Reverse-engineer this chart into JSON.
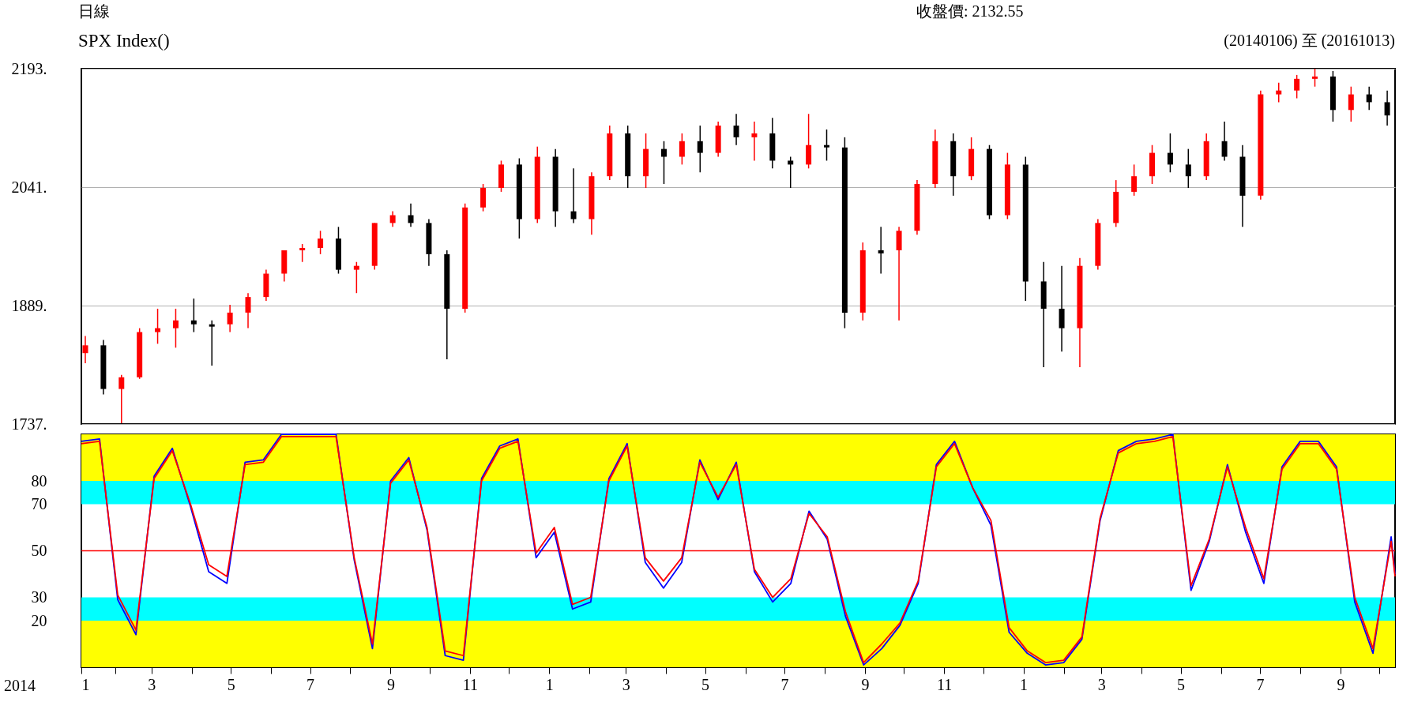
{
  "chart_data": [
    {
      "type": "candlestick",
      "title": "SPX Index()",
      "annotations": [
        "日線",
        "收盤價: 2132.55",
        "(20140106) 至 (20161013)"
      ],
      "x": [
        "2014-01-06",
        "2014-01-20",
        "2014-02-03",
        "2014-02-17",
        "2014-03-03",
        "2014-03-17",
        "2014-03-31",
        "2014-04-14",
        "2014-04-28",
        "2014-05-12",
        "2014-05-26",
        "2014-06-09",
        "2014-06-23",
        "2014-07-07",
        "2014-07-21",
        "2014-08-04",
        "2014-08-18",
        "2014-09-01",
        "2014-09-15",
        "2014-09-29",
        "2014-10-13",
        "2014-10-27",
        "2014-11-10",
        "2014-11-24",
        "2014-12-08",
        "2014-12-22",
        "2015-01-05",
        "2015-01-19",
        "2015-02-02",
        "2015-02-16",
        "2015-03-02",
        "2015-03-16",
        "2015-03-30",
        "2015-04-13",
        "2015-04-27",
        "2015-05-11",
        "2015-05-25",
        "2015-06-08",
        "2015-06-22",
        "2015-07-06",
        "2015-07-20",
        "2015-08-03",
        "2015-08-17",
        "2015-08-31",
        "2015-09-14",
        "2015-09-28",
        "2015-10-12",
        "2015-10-26",
        "2015-11-09",
        "2015-11-23",
        "2015-12-07",
        "2015-12-21",
        "2016-01-04",
        "2016-01-18",
        "2016-02-01",
        "2016-02-15",
        "2016-02-29",
        "2016-03-14",
        "2016-03-28",
        "2016-04-11",
        "2016-04-25",
        "2016-05-09",
        "2016-05-23",
        "2016-06-06",
        "2016-06-20",
        "2016-07-04",
        "2016-07-18",
        "2016-08-01",
        "2016-08-15",
        "2016-08-29",
        "2016-09-12",
        "2016-09-26",
        "2016-10-10"
      ],
      "ohlc": [
        [
          1828,
          1850,
          1815,
          1838
        ],
        [
          1838,
          1845,
          1775,
          1782
        ],
        [
          1782,
          1800,
          1738,
          1797
        ],
        [
          1797,
          1860,
          1795,
          1855
        ],
        [
          1855,
          1885,
          1840,
          1860
        ],
        [
          1860,
          1885,
          1835,
          1870
        ],
        [
          1870,
          1898,
          1855,
          1865
        ],
        [
          1865,
          1870,
          1812,
          1862
        ],
        [
          1865,
          1890,
          1855,
          1880
        ],
        [
          1880,
          1905,
          1860,
          1900
        ],
        [
          1900,
          1935,
          1895,
          1930
        ],
        [
          1930,
          1960,
          1920,
          1960
        ],
        [
          1960,
          1968,
          1945,
          1963
        ],
        [
          1963,
          1985,
          1955,
          1975
        ],
        [
          1975,
          1990,
          1930,
          1935
        ],
        [
          1935,
          1945,
          1905,
          1940
        ],
        [
          1940,
          1995,
          1935,
          1995
        ],
        [
          1995,
          2010,
          1990,
          2005
        ],
        [
          2005,
          2020,
          1990,
          1995
        ],
        [
          1995,
          2000,
          1940,
          1955
        ],
        [
          1955,
          1960,
          1820,
          1885
        ],
        [
          1885,
          2020,
          1880,
          2015
        ],
        [
          2015,
          2045,
          2010,
          2040
        ],
        [
          2040,
          2075,
          2035,
          2070
        ],
        [
          2070,
          2078,
          1975,
          2000
        ],
        [
          2000,
          2093,
          1995,
          2080
        ],
        [
          2080,
          2090,
          1990,
          2010
        ],
        [
          2010,
          2065,
          1995,
          2000
        ],
        [
          2000,
          2060,
          1980,
          2055
        ],
        [
          2055,
          2120,
          2050,
          2110
        ],
        [
          2110,
          2120,
          2040,
          2055
        ],
        [
          2055,
          2110,
          2040,
          2090
        ],
        [
          2090,
          2100,
          2045,
          2080
        ],
        [
          2080,
          2110,
          2070,
          2100
        ],
        [
          2100,
          2120,
          2060,
          2085
        ],
        [
          2085,
          2125,
          2080,
          2120
        ],
        [
          2120,
          2135,
          2095,
          2105
        ],
        [
          2105,
          2125,
          2075,
          2110
        ],
        [
          2110,
          2130,
          2065,
          2075
        ],
        [
          2075,
          2080,
          2040,
          2070
        ],
        [
          2070,
          2135,
          2065,
          2095
        ],
        [
          2095,
          2115,
          2075,
          2092
        ],
        [
          2092,
          2105,
          1860,
          1880
        ],
        [
          1880,
          1970,
          1870,
          1960
        ],
        [
          1960,
          1990,
          1930,
          1956
        ],
        [
          1960,
          1990,
          1870,
          1985
        ],
        [
          1985,
          2050,
          1980,
          2045
        ],
        [
          2045,
          2115,
          2040,
          2100
        ],
        [
          2100,
          2110,
          2030,
          2055
        ],
        [
          2055,
          2105,
          2050,
          2090
        ],
        [
          2090,
          2095,
          2000,
          2005
        ],
        [
          2005,
          2085,
          2000,
          2070
        ],
        [
          2070,
          2080,
          1895,
          1920
        ],
        [
          1920,
          1945,
          1810,
          1885
        ],
        [
          1885,
          1940,
          1830,
          1860
        ],
        [
          1860,
          1950,
          1810,
          1940
        ],
        [
          1940,
          2000,
          1935,
          1995
        ],
        [
          1995,
          2050,
          1990,
          2035
        ],
        [
          2035,
          2070,
          2030,
          2055
        ],
        [
          2055,
          2095,
          2045,
          2085
        ],
        [
          2085,
          2110,
          2060,
          2070
        ],
        [
          2070,
          2090,
          2040,
          2055
        ],
        [
          2055,
          2110,
          2050,
          2100
        ],
        [
          2100,
          2125,
          2075,
          2080
        ],
        [
          2080,
          2095,
          1990,
          2030
        ],
        [
          2030,
          2165,
          2025,
          2160
        ],
        [
          2160,
          2175,
          2150,
          2165
        ],
        [
          2165,
          2185,
          2155,
          2180
        ],
        [
          2180,
          2193,
          2170,
          2183
        ],
        [
          2183,
          2190,
          2125,
          2140
        ],
        [
          2140,
          2170,
          2125,
          2160
        ],
        [
          2160,
          2170,
          2140,
          2150
        ],
        [
          2150,
          2165,
          2120,
          2133
        ]
      ],
      "colors": [
        "#ff0000",
        "#000000",
        "#ff0000",
        "#ff0000",
        "#ff0000",
        "#ff0000",
        "#000000",
        "#000000",
        "#ff0000",
        "#ff0000",
        "#ff0000",
        "#ff0000",
        "#ff0000",
        "#ff0000",
        "#000000",
        "#ff0000",
        "#ff0000",
        "#ff0000",
        "#000000",
        "#000000",
        "#000000",
        "#ff0000",
        "#ff0000",
        "#ff0000",
        "#000000",
        "#ff0000",
        "#000000",
        "#000000",
        "#ff0000",
        "#ff0000",
        "#000000",
        "#ff0000",
        "#000000",
        "#ff0000",
        "#000000",
        "#ff0000",
        "#000000",
        "#ff0000",
        "#000000",
        "#000000",
        "#ff0000",
        "#000000",
        "#000000",
        "#ff0000",
        "#000000",
        "#ff0000",
        "#ff0000",
        "#ff0000",
        "#000000",
        "#ff0000",
        "#000000",
        "#ff0000",
        "#000000",
        "#000000",
        "#000000",
        "#ff0000",
        "#ff0000",
        "#ff0000",
        "#ff0000",
        "#ff0000",
        "#000000",
        "#000000",
        "#ff0000",
        "#000000",
        "#000000",
        "#ff0000",
        "#ff0000",
        "#ff0000",
        "#ff0000",
        "#000000",
        "#ff0000",
        "#000000",
        "#000000"
      ],
      "xlim": [
        "2014-01-06",
        "2016-10-13"
      ],
      "ylim": [
        1737,
        2193
      ],
      "yticks": [
        {
          "value": 1737,
          "label": "1737."
        },
        {
          "value": 1889,
          "label": "1889."
        },
        {
          "value": 2041,
          "label": "2041."
        },
        {
          "value": 2193,
          "label": "2193."
        }
      ],
      "grid": "y",
      "tick_labels": "y"
    },
    {
      "type": "line",
      "annotations": [
        "2014"
      ],
      "x": [
        "2014-01-06",
        "2014-01-20",
        "2014-02-03",
        "2014-02-17",
        "2014-03-03",
        "2014-03-17",
        "2014-03-31",
        "2014-04-14",
        "2014-04-28",
        "2014-05-12",
        "2014-05-26",
        "2014-06-09",
        "2014-06-23",
        "2014-07-07",
        "2014-07-21",
        "2014-08-04",
        "2014-08-18",
        "2014-09-01",
        "2014-09-15",
        "2014-09-29",
        "2014-10-13",
        "2014-10-27",
        "2014-11-10",
        "2014-11-24",
        "2014-12-08",
        "2014-12-22",
        "2015-01-05",
        "2015-01-19",
        "2015-02-02",
        "2015-02-16",
        "2015-03-02",
        "2015-03-16",
        "2015-03-30",
        "2015-04-13",
        "2015-04-27",
        "2015-05-11",
        "2015-05-25",
        "2015-06-08",
        "2015-06-22",
        "2015-07-06",
        "2015-07-20",
        "2015-08-03",
        "2015-08-17",
        "2015-08-31",
        "2015-09-14",
        "2015-09-28",
        "2015-10-12",
        "2015-10-26",
        "2015-11-09",
        "2015-11-23",
        "2015-12-07",
        "2015-12-21",
        "2016-01-04",
        "2016-01-18",
        "2016-02-01",
        "2016-02-15",
        "2016-02-29",
        "2016-03-14",
        "2016-03-28",
        "2016-04-11",
        "2016-04-25",
        "2016-05-09",
        "2016-05-23",
        "2016-06-06",
        "2016-06-20",
        "2016-07-04",
        "2016-07-18",
        "2016-08-01",
        "2016-08-15",
        "2016-08-29",
        "2016-09-12",
        "2016-09-26",
        "2016-10-10",
        "2016-10-13"
      ],
      "series": [
        {
          "color": "#0000ff",
          "values": [
            97,
            98,
            29,
            14,
            82,
            94,
            69,
            41,
            36,
            88,
            89,
            100,
            100,
            100,
            100,
            46,
            8,
            80,
            90,
            59,
            5,
            3,
            81,
            95,
            98,
            47,
            58,
            25,
            28,
            81,
            96,
            45,
            34,
            45,
            89,
            72,
            88,
            41,
            28,
            36,
            67,
            55,
            22,
            1,
            8,
            18,
            36,
            87,
            97,
            77,
            61,
            15,
            6,
            1,
            2,
            12,
            63,
            93,
            97,
            98,
            100,
            33,
            54,
            87,
            58,
            36,
            86,
            97,
            97,
            86,
            28,
            6,
            56,
            40
          ]
        },
        {
          "color": "#ff0000",
          "values": [
            96,
            97,
            31,
            16,
            81,
            93,
            70,
            44,
            39,
            87,
            88,
            99,
            99,
            99,
            99,
            47,
            10,
            79,
            89,
            60,
            7,
            5,
            80,
            94,
            97,
            49,
            60,
            27,
            30,
            80,
            95,
            47,
            37,
            47,
            88,
            73,
            87,
            42,
            30,
            38,
            66,
            56,
            24,
            2,
            10,
            19,
            37,
            86,
            96,
            77,
            63,
            17,
            7,
            2,
            3,
            13,
            64,
            92,
            96,
            97,
            99,
            35,
            55,
            86,
            60,
            38,
            85,
            96,
            96,
            85,
            30,
            8,
            54,
            39
          ]
        }
      ],
      "xlim": [
        "2014-01-06",
        "2016-10-13"
      ],
      "xticks": [
        {
          "value": "2014-01-06",
          "label": "1"
        },
        {
          "value": "2014-02-01",
          "label": null
        },
        {
          "value": "2014-03-01",
          "label": "3"
        },
        {
          "value": "2014-04-01",
          "label": null
        },
        {
          "value": "2014-05-01",
          "label": "5"
        },
        {
          "value": "2014-06-01",
          "label": null
        },
        {
          "value": "2014-07-01",
          "label": "7"
        },
        {
          "value": "2014-08-01",
          "label": null
        },
        {
          "value": "2014-09-01",
          "label": "9"
        },
        {
          "value": "2014-10-01",
          "label": null
        },
        {
          "value": "2014-11-01",
          "label": "11"
        },
        {
          "value": "2014-12-01",
          "label": null
        },
        {
          "value": "2015-01-01",
          "label": "1"
        },
        {
          "value": "2015-02-01",
          "label": null
        },
        {
          "value": "2015-03-01",
          "label": "3"
        },
        {
          "value": "2015-04-01",
          "label": null
        },
        {
          "value": "2015-05-01",
          "label": "5"
        },
        {
          "value": "2015-06-01",
          "label": null
        },
        {
          "value": "2015-07-01",
          "label": "7"
        },
        {
          "value": "2015-08-01",
          "label": null
        },
        {
          "value": "2015-09-01",
          "label": "9"
        },
        {
          "value": "2015-10-01",
          "label": null
        },
        {
          "value": "2015-11-01",
          "label": "11"
        },
        {
          "value": "2015-12-01",
          "label": null
        },
        {
          "value": "2016-01-01",
          "label": "1"
        },
        {
          "value": "2016-02-01",
          "label": null
        },
        {
          "value": "2016-03-01",
          "label": "3"
        },
        {
          "value": "2016-04-01",
          "label": null
        },
        {
          "value": "2016-05-01",
          "label": "5"
        },
        {
          "value": "2016-06-01",
          "label": null
        },
        {
          "value": "2016-07-01",
          "label": "7"
        },
        {
          "value": "2016-08-01",
          "label": null
        },
        {
          "value": "2016-09-01",
          "label": "9"
        },
        {
          "value": "2016-10-01",
          "label": null
        }
      ],
      "ylim": [
        0,
        100
      ],
      "yticks": [
        20,
        30,
        50,
        70,
        80
      ],
      "bands": [
        {
          "axis": "y",
          "from": 0,
          "to": 20,
          "color": "#ffff00"
        },
        {
          "axis": "y",
          "from": 80,
          "to": 100,
          "color": "#ffff00"
        },
        {
          "axis": "y",
          "from": 20,
          "to": 30,
          "color": "#00ffff"
        },
        {
          "axis": "y",
          "from": 70,
          "to": 80,
          "color": "#00ffff"
        }
      ],
      "ref_lines": [
        {
          "axis": "y",
          "value": 50,
          "color": "#ff0000"
        }
      ],
      "line_style": "solid"
    }
  ]
}
